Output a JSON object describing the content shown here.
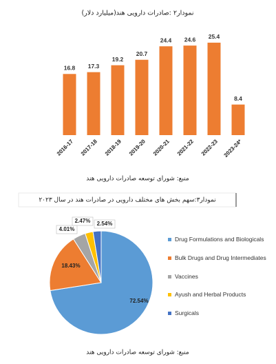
{
  "chart_data": [
    {
      "type": "bar",
      "title": "نمودار۲ :صادرات دارویی هند(میلیارد دلار)",
      "categories": [
        "2016-17",
        "2017-18",
        "2018-19",
        "2019-20",
        "2020-21",
        "2021-22",
        "2022-23",
        "2023-24*"
      ],
      "values": [
        16.8,
        17.3,
        19.2,
        20.7,
        24.4,
        24.6,
        25.4,
        8.4
      ],
      "color": "#ed7d31",
      "source": "منبع: شورای توسعه صادرات دارویی هند"
    },
    {
      "type": "pie",
      "title": "نمودار۳:سهم بخش های مختلف دارویی در صادرات هند در سال ۲۰۲۳",
      "categories": [
        "Drug Formulations and Biologicals",
        "Bulk Drugs and Drug Intermediates",
        "Vaccines",
        "Ayush and Herbal Products",
        "Surgicals"
      ],
      "values": [
        72.54,
        18.43,
        4.01,
        2.47,
        2.54
      ],
      "value_labels": [
        "72.54%",
        "18.43%",
        "4.01%",
        "2.47%",
        "2.54%"
      ],
      "colors": [
        "#5b9bd5",
        "#ed7d31",
        "#a5a5a5",
        "#ffc000",
        "#4472c4"
      ],
      "source": "منبع: شورای توسعه صادرات دارویی هند"
    }
  ]
}
